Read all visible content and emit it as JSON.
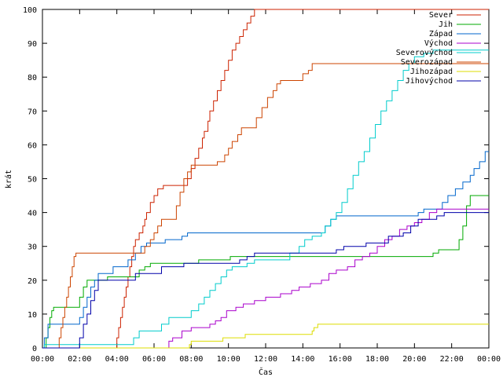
{
  "chart_data": {
    "type": "line",
    "title": "",
    "xlabel": "Čas",
    "ylabel": "krát",
    "xlim": [
      0,
      24
    ],
    "ylim": [
      0,
      100
    ],
    "x_ticks": [
      "00:00",
      "02:00",
      "04:00",
      "06:00",
      "08:00",
      "10:00",
      "12:00",
      "14:00",
      "16:00",
      "18:00",
      "20:00",
      "22:00",
      "00:00"
    ],
    "y_ticks": [
      0,
      10,
      20,
      30,
      40,
      50,
      60,
      70,
      80,
      90,
      100
    ],
    "legend_position": "top-right",
    "grid": false,
    "series": [
      {
        "name": "Sever",
        "color": "#cc2200",
        "points": [
          [
            0,
            0
          ],
          [
            3.9,
            0
          ],
          [
            4.0,
            3
          ],
          [
            4.1,
            6
          ],
          [
            4.2,
            9
          ],
          [
            4.3,
            12
          ],
          [
            4.4,
            15
          ],
          [
            4.5,
            18
          ],
          [
            4.6,
            21
          ],
          [
            4.7,
            24
          ],
          [
            4.8,
            27
          ],
          [
            4.9,
            30
          ],
          [
            5.0,
            32
          ],
          [
            5.2,
            34
          ],
          [
            5.4,
            36
          ],
          [
            5.5,
            38
          ],
          [
            5.6,
            40
          ],
          [
            5.8,
            43
          ],
          [
            6.0,
            45
          ],
          [
            6.2,
            47
          ],
          [
            6.5,
            48
          ],
          [
            7.6,
            48
          ],
          [
            7.8,
            50
          ],
          [
            8.0,
            53
          ],
          [
            8.2,
            56
          ],
          [
            8.4,
            59
          ],
          [
            8.6,
            62
          ],
          [
            8.7,
            64
          ],
          [
            8.9,
            67
          ],
          [
            9.0,
            70
          ],
          [
            9.2,
            73
          ],
          [
            9.4,
            76
          ],
          [
            9.6,
            79
          ],
          [
            9.8,
            82
          ],
          [
            10.0,
            85
          ],
          [
            10.2,
            88
          ],
          [
            10.4,
            90
          ],
          [
            10.6,
            92
          ],
          [
            10.8,
            94
          ],
          [
            11.0,
            96
          ],
          [
            11.2,
            98
          ],
          [
            11.4,
            100
          ],
          [
            24,
            100
          ]
        ]
      },
      {
        "name": "Jih",
        "color": "#00aa00",
        "points": [
          [
            0,
            0
          ],
          [
            0.2,
            3
          ],
          [
            0.3,
            6
          ],
          [
            0.4,
            9
          ],
          [
            0.5,
            11
          ],
          [
            0.6,
            12
          ],
          [
            1.8,
            12
          ],
          [
            2.0,
            15
          ],
          [
            2.2,
            18
          ],
          [
            2.4,
            20
          ],
          [
            3.4,
            20
          ],
          [
            3.5,
            21
          ],
          [
            5.1,
            21
          ],
          [
            5.2,
            23
          ],
          [
            5.5,
            24
          ],
          [
            5.8,
            25
          ],
          [
            8.2,
            25
          ],
          [
            8.4,
            26
          ],
          [
            10.0,
            26
          ],
          [
            10.1,
            27
          ],
          [
            20.9,
            27
          ],
          [
            21.0,
            28
          ],
          [
            21.3,
            29
          ],
          [
            22.2,
            29
          ],
          [
            22.4,
            32
          ],
          [
            22.6,
            36
          ],
          [
            22.8,
            42
          ],
          [
            23.0,
            45
          ],
          [
            24,
            45
          ]
        ]
      },
      {
        "name": "Západ",
        "color": "#0066cc",
        "points": [
          [
            0,
            0
          ],
          [
            0.1,
            3
          ],
          [
            0.3,
            7
          ],
          [
            1.8,
            7
          ],
          [
            2.0,
            9
          ],
          [
            2.2,
            12
          ],
          [
            2.4,
            15
          ],
          [
            2.6,
            18
          ],
          [
            2.8,
            20
          ],
          [
            3.0,
            22
          ],
          [
            3.6,
            22
          ],
          [
            3.8,
            24
          ],
          [
            4.4,
            24
          ],
          [
            4.6,
            26
          ],
          [
            5.0,
            28
          ],
          [
            5.3,
            30
          ],
          [
            5.6,
            31
          ],
          [
            6.4,
            31
          ],
          [
            6.6,
            32
          ],
          [
            7.2,
            32
          ],
          [
            7.5,
            33
          ],
          [
            7.8,
            34
          ],
          [
            15.0,
            34
          ],
          [
            15.2,
            36
          ],
          [
            15.5,
            38
          ],
          [
            15.8,
            39
          ],
          [
            19.9,
            39
          ],
          [
            20.2,
            40
          ],
          [
            20.5,
            41
          ],
          [
            21.2,
            41
          ],
          [
            21.5,
            43
          ],
          [
            21.8,
            45
          ],
          [
            22.2,
            47
          ],
          [
            22.6,
            49
          ],
          [
            23.0,
            51
          ],
          [
            23.2,
            53
          ],
          [
            23.5,
            55
          ],
          [
            23.8,
            58
          ],
          [
            24,
            58
          ]
        ]
      },
      {
        "name": "Východ",
        "color": "#aa00cc",
        "points": [
          [
            0,
            0
          ],
          [
            6.7,
            0
          ],
          [
            6.8,
            2
          ],
          [
            7.0,
            3
          ],
          [
            7.5,
            5
          ],
          [
            8.0,
            6
          ],
          [
            9.0,
            7
          ],
          [
            9.3,
            8
          ],
          [
            9.6,
            9
          ],
          [
            9.9,
            11
          ],
          [
            10.4,
            12
          ],
          [
            10.8,
            13
          ],
          [
            11.4,
            14
          ],
          [
            12.0,
            15
          ],
          [
            12.8,
            16
          ],
          [
            13.4,
            17
          ],
          [
            13.8,
            18
          ],
          [
            14.4,
            19
          ],
          [
            15.0,
            20
          ],
          [
            15.4,
            22
          ],
          [
            15.8,
            23
          ],
          [
            16.4,
            24
          ],
          [
            16.8,
            26
          ],
          [
            17.2,
            27
          ],
          [
            17.6,
            28
          ],
          [
            18.0,
            30
          ],
          [
            18.4,
            32
          ],
          [
            18.8,
            33
          ],
          [
            19.2,
            35
          ],
          [
            19.6,
            36
          ],
          [
            20.0,
            37
          ],
          [
            20.4,
            38
          ],
          [
            20.8,
            40
          ],
          [
            21.2,
            41
          ],
          [
            24,
            41
          ]
        ]
      },
      {
        "name": "Severovýchod",
        "color": "#00cccc",
        "points": [
          [
            0,
            0
          ],
          [
            0.1,
            1
          ],
          [
            4.7,
            1
          ],
          [
            4.9,
            3
          ],
          [
            5.2,
            5
          ],
          [
            6.2,
            5
          ],
          [
            6.4,
            7
          ],
          [
            6.8,
            9
          ],
          [
            7.8,
            9
          ],
          [
            8.0,
            11
          ],
          [
            8.4,
            13
          ],
          [
            8.7,
            15
          ],
          [
            9.0,
            17
          ],
          [
            9.3,
            19
          ],
          [
            9.6,
            21
          ],
          [
            9.9,
            23
          ],
          [
            10.2,
            24
          ],
          [
            11.0,
            25
          ],
          [
            11.4,
            26
          ],
          [
            13.0,
            26
          ],
          [
            13.3,
            28
          ],
          [
            13.8,
            30
          ],
          [
            14.1,
            32
          ],
          [
            14.5,
            33
          ],
          [
            15.0,
            34
          ],
          [
            15.2,
            36
          ],
          [
            15.5,
            38
          ],
          [
            15.8,
            40
          ],
          [
            16.1,
            43
          ],
          [
            16.4,
            47
          ],
          [
            16.7,
            51
          ],
          [
            17.0,
            55
          ],
          [
            17.3,
            58
          ],
          [
            17.6,
            62
          ],
          [
            17.9,
            66
          ],
          [
            18.2,
            70
          ],
          [
            18.5,
            73
          ],
          [
            18.8,
            76
          ],
          [
            19.1,
            79
          ],
          [
            19.4,
            82
          ],
          [
            19.7,
            84
          ],
          [
            20.0,
            86
          ],
          [
            20.5,
            87
          ],
          [
            21.0,
            88
          ],
          [
            24,
            88
          ]
        ]
      },
      {
        "name": "Severozápad",
        "color": "#cc4400",
        "points": [
          [
            0,
            0
          ],
          [
            0.8,
            0
          ],
          [
            0.9,
            3
          ],
          [
            1.0,
            6
          ],
          [
            1.1,
            9
          ],
          [
            1.2,
            12
          ],
          [
            1.3,
            15
          ],
          [
            1.4,
            18
          ],
          [
            1.5,
            21
          ],
          [
            1.6,
            24
          ],
          [
            1.7,
            27
          ],
          [
            1.8,
            28
          ],
          [
            5.3,
            28
          ],
          [
            5.5,
            30
          ],
          [
            5.8,
            32
          ],
          [
            6.0,
            34
          ],
          [
            6.2,
            36
          ],
          [
            6.4,
            38
          ],
          [
            7.0,
            38
          ],
          [
            7.2,
            42
          ],
          [
            7.4,
            46
          ],
          [
            7.6,
            50
          ],
          [
            7.8,
            52
          ],
          [
            8.0,
            54
          ],
          [
            9.2,
            54
          ],
          [
            9.4,
            55
          ],
          [
            9.8,
            57
          ],
          [
            10.0,
            59
          ],
          [
            10.2,
            61
          ],
          [
            10.5,
            63
          ],
          [
            10.7,
            65
          ],
          [
            11.2,
            65
          ],
          [
            11.5,
            68
          ],
          [
            11.8,
            71
          ],
          [
            12.1,
            74
          ],
          [
            12.4,
            76
          ],
          [
            12.6,
            78
          ],
          [
            12.8,
            79
          ],
          [
            13.8,
            79
          ],
          [
            14.0,
            81
          ],
          [
            14.3,
            82
          ],
          [
            14.5,
            84
          ],
          [
            24,
            84
          ]
        ]
      },
      {
        "name": "Jihozápad",
        "color": "#dddd00",
        "points": [
          [
            0,
            0
          ],
          [
            7.8,
            0
          ],
          [
            7.9,
            1
          ],
          [
            8.0,
            2
          ],
          [
            9.6,
            2
          ],
          [
            9.7,
            3
          ],
          [
            10.8,
            3
          ],
          [
            10.9,
            4
          ],
          [
            14.4,
            4
          ],
          [
            14.5,
            5
          ],
          [
            14.6,
            6
          ],
          [
            14.8,
            7
          ],
          [
            24,
            7
          ]
        ]
      },
      {
        "name": "Jihovýchod",
        "color": "#0000aa",
        "points": [
          [
            0,
            0
          ],
          [
            1.8,
            0
          ],
          [
            2.0,
            3
          ],
          [
            2.2,
            7
          ],
          [
            2.4,
            10
          ],
          [
            2.6,
            14
          ],
          [
            2.8,
            17
          ],
          [
            3.0,
            20
          ],
          [
            4.8,
            20
          ],
          [
            5.0,
            22
          ],
          [
            6.2,
            22
          ],
          [
            6.4,
            24
          ],
          [
            7.4,
            24
          ],
          [
            7.6,
            25
          ],
          [
            10.4,
            25
          ],
          [
            10.6,
            26
          ],
          [
            11.0,
            27
          ],
          [
            11.4,
            28
          ],
          [
            15.6,
            28
          ],
          [
            15.8,
            29
          ],
          [
            16.2,
            30
          ],
          [
            17.2,
            30
          ],
          [
            17.4,
            31
          ],
          [
            18.4,
            31
          ],
          [
            18.6,
            33
          ],
          [
            19.4,
            34
          ],
          [
            19.8,
            36
          ],
          [
            20.2,
            38
          ],
          [
            21.0,
            38
          ],
          [
            21.2,
            39
          ],
          [
            21.6,
            40
          ],
          [
            24,
            40
          ]
        ]
      }
    ]
  }
}
